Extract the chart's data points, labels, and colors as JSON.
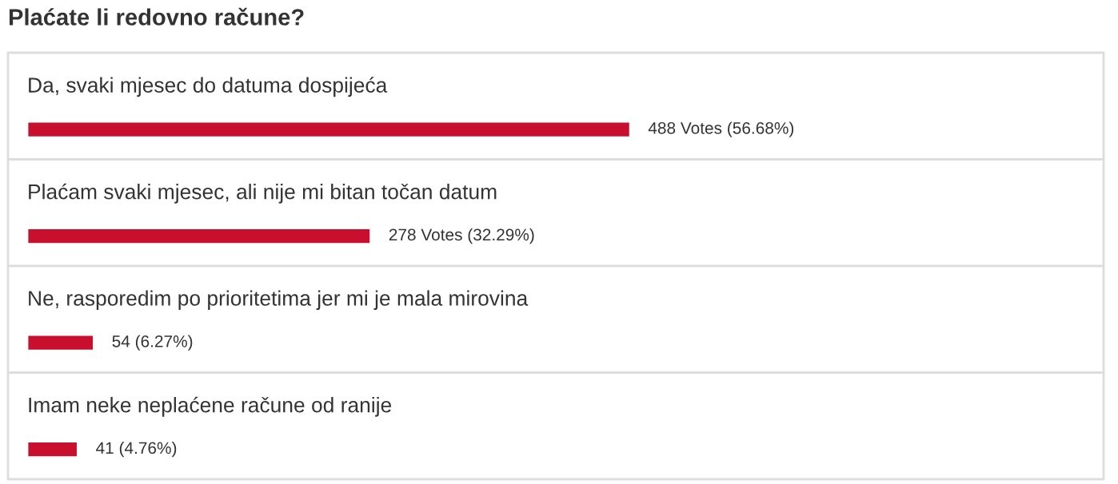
{
  "chart_data": {
    "type": "bar",
    "orientation": "horizontal",
    "title": "Plaćate li redovno račune?",
    "categories": [
      "Da, svaki mjesec do datuma dospijeća",
      "Plaćam svaki mjesec, ali nije mi bitan točan datum",
      "Ne, rasporedim po prioritetima jer mi je mala mirovina",
      "Imam neke neplaćene račune od ranije"
    ],
    "values": [
      488,
      278,
      54,
      41
    ],
    "value_labels": [
      "488 Votes (56.68%)",
      "278 Votes (32.29%)",
      "54 (6.27%)",
      "41 (4.76%)"
    ],
    "color": "#c8102e",
    "xlim": [
      0,
      871
    ]
  }
}
